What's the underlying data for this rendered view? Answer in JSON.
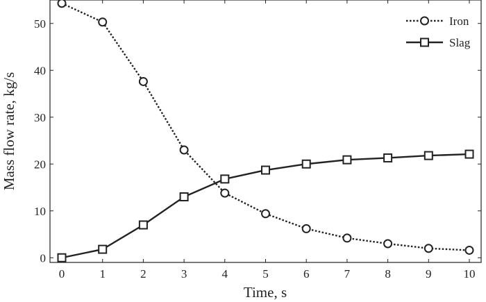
{
  "chart_data": {
    "type": "line",
    "title": "",
    "xlabel": "Time, s",
    "ylabel": "Mass flow rate, kg/s",
    "x": [
      0,
      1,
      2,
      3,
      4,
      5,
      6,
      7,
      8,
      9,
      10
    ],
    "xlim": [
      0,
      10
    ],
    "ylim": [
      -1,
      55
    ],
    "xticks": [
      0,
      1,
      2,
      3,
      4,
      5,
      6,
      7,
      8,
      9,
      10
    ],
    "yticks": [
      0,
      10,
      20,
      30,
      40,
      50
    ],
    "grid": false,
    "legend_position": "top-right",
    "series": [
      {
        "name": "Iron",
        "values": [
          54.3,
          50.3,
          37.6,
          23.0,
          13.8,
          9.4,
          6.2,
          4.2,
          3.0,
          2.0,
          1.6
        ],
        "line_style": "dotted",
        "marker": "circle",
        "color": "#222222"
      },
      {
        "name": "Slag",
        "values": [
          0.0,
          1.8,
          7.0,
          13.0,
          16.8,
          18.7,
          20.0,
          20.9,
          21.3,
          21.8,
          22.1
        ],
        "line_style": "solid",
        "marker": "square",
        "color": "#222222"
      }
    ]
  }
}
